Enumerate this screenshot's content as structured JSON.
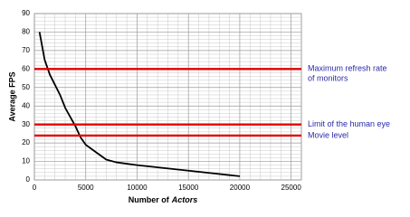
{
  "chart_data": {
    "type": "line",
    "y_label": "Average FPS",
    "x_label": [
      "Number of",
      "Actors"
    ],
    "xlim": [
      0,
      26000
    ],
    "xticks": [
      0,
      5000,
      10000,
      15000,
      20000,
      25000
    ],
    "ylim": [
      0,
      90
    ],
    "yticks": [
      0,
      10,
      20,
      30,
      40,
      50,
      60,
      70,
      80,
      90
    ],
    "grid": true,
    "x": [
      500,
      1000,
      1500,
      2500,
      3000,
      4000,
      4500,
      5000,
      6000,
      7000,
      8000,
      10000,
      15000,
      20000
    ],
    "series": [
      {
        "color": "#000000",
        "values": [
          80,
          65,
          57,
          46,
          39,
          29,
          23,
          19,
          15,
          11,
          9.5,
          8,
          5,
          2
        ]
      }
    ],
    "reference_lines": [
      {
        "value": 60,
        "color": "#e00000",
        "label": [
          "Maximum refresh rate",
          "of monitors"
        ]
      },
      {
        "value": 30,
        "color": "#e00000",
        "label": [
          "Limit of the human eye"
        ]
      },
      {
        "value": 24,
        "color": "#e00000",
        "label": [
          "Movie level"
        ]
      }
    ]
  }
}
